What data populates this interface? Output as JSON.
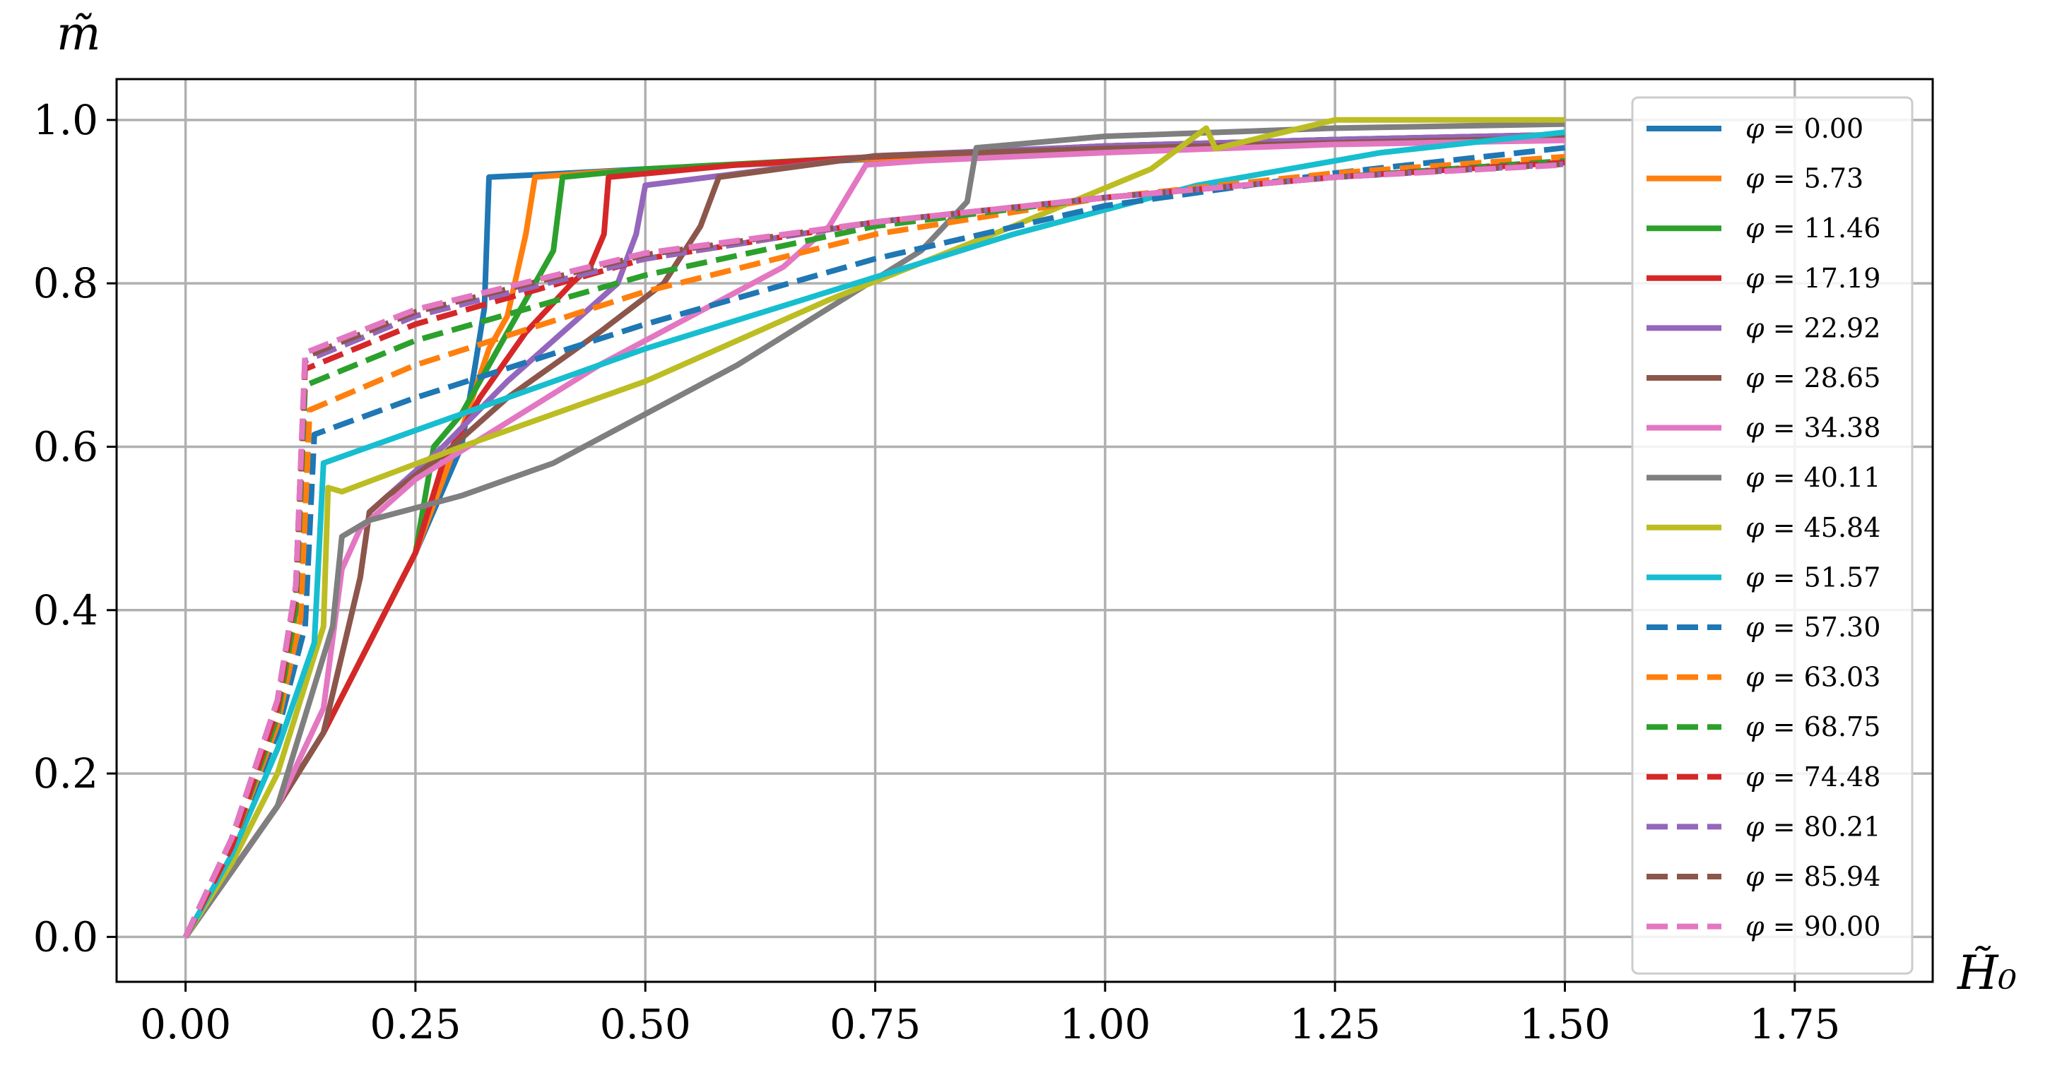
{
  "chart_data": {
    "type": "line",
    "xlabel": "H̃₀",
    "ylabel": "m̃",
    "xlim": [
      -0.075,
      1.9
    ],
    "ylim": [
      -0.055,
      1.05
    ],
    "xticks": [
      "0.00",
      "0.25",
      "0.50",
      "0.75",
      "1.00",
      "1.25",
      "1.50",
      "1.75"
    ],
    "xtick_values": [
      0,
      0.25,
      0.5,
      0.75,
      1.0,
      1.25,
      1.5,
      1.75
    ],
    "yticks": [
      "0.0",
      "0.2",
      "0.4",
      "0.6",
      "0.8",
      "1.0"
    ],
    "ytick_values": [
      0,
      0.2,
      0.4,
      0.6,
      0.8,
      1.0
    ],
    "grid": true,
    "legend_position": "right",
    "legend_symbol": "φ",
    "series": [
      {
        "name": "0.00",
        "color": "#1f77b4",
        "dash": false,
        "points": [
          [
            0,
            0
          ],
          [
            0.05,
            0.08
          ],
          [
            0.1,
            0.16
          ],
          [
            0.15,
            0.25
          ],
          [
            0.2,
            0.36
          ],
          [
            0.25,
            0.47
          ],
          [
            0.3,
            0.6
          ],
          [
            0.315,
            0.7
          ],
          [
            0.325,
            0.77
          ],
          [
            0.33,
            0.93
          ],
          [
            0.4,
            0.934
          ],
          [
            0.5,
            0.94
          ],
          [
            0.75,
            0.952
          ],
          [
            1.0,
            0.965
          ],
          [
            1.25,
            0.972
          ],
          [
            1.5,
            0.978
          ]
        ]
      },
      {
        "name": "5.73",
        "color": "#ff7f0e",
        "dash": false,
        "points": [
          [
            0,
            0
          ],
          [
            0.05,
            0.08
          ],
          [
            0.1,
            0.16
          ],
          [
            0.15,
            0.25
          ],
          [
            0.2,
            0.36
          ],
          [
            0.25,
            0.47
          ],
          [
            0.3,
            0.62
          ],
          [
            0.33,
            0.72
          ],
          [
            0.35,
            0.76
          ],
          [
            0.37,
            0.86
          ],
          [
            0.38,
            0.93
          ],
          [
            0.45,
            0.936
          ],
          [
            0.6,
            0.945
          ],
          [
            0.75,
            0.953
          ],
          [
            1.0,
            0.966
          ],
          [
            1.25,
            0.974
          ],
          [
            1.5,
            0.98
          ]
        ]
      },
      {
        "name": "11.46",
        "color": "#2ca02c",
        "dash": false,
        "points": [
          [
            0,
            0
          ],
          [
            0.05,
            0.08
          ],
          [
            0.1,
            0.16
          ],
          [
            0.15,
            0.25
          ],
          [
            0.2,
            0.36
          ],
          [
            0.25,
            0.47
          ],
          [
            0.27,
            0.6
          ],
          [
            0.3,
            0.64
          ],
          [
            0.34,
            0.72
          ],
          [
            0.37,
            0.78
          ],
          [
            0.4,
            0.84
          ],
          [
            0.41,
            0.93
          ],
          [
            0.5,
            0.94
          ],
          [
            0.75,
            0.955
          ],
          [
            1.0,
            0.968
          ],
          [
            1.25,
            0.976
          ],
          [
            1.5,
            0.982
          ]
        ]
      },
      {
        "name": "17.19",
        "color": "#d62728",
        "dash": false,
        "points": [
          [
            0,
            0
          ],
          [
            0.05,
            0.08
          ],
          [
            0.1,
            0.16
          ],
          [
            0.15,
            0.25
          ],
          [
            0.2,
            0.36
          ],
          [
            0.25,
            0.47
          ],
          [
            0.28,
            0.58
          ],
          [
            0.32,
            0.66
          ],
          [
            0.37,
            0.74
          ],
          [
            0.42,
            0.8
          ],
          [
            0.44,
            0.82
          ],
          [
            0.455,
            0.86
          ],
          [
            0.46,
            0.93
          ],
          [
            0.6,
            0.945
          ],
          [
            0.75,
            0.955
          ],
          [
            1.0,
            0.968
          ],
          [
            1.25,
            0.976
          ],
          [
            1.5,
            0.982
          ]
        ]
      },
      {
        "name": "22.92",
        "color": "#9467bd",
        "dash": false,
        "points": [
          [
            0,
            0
          ],
          [
            0.05,
            0.08
          ],
          [
            0.1,
            0.16
          ],
          [
            0.15,
            0.25
          ],
          [
            0.19,
            0.44
          ],
          [
            0.2,
            0.52
          ],
          [
            0.22,
            0.54
          ],
          [
            0.28,
            0.6
          ],
          [
            0.35,
            0.68
          ],
          [
            0.42,
            0.75
          ],
          [
            0.47,
            0.8
          ],
          [
            0.49,
            0.86
          ],
          [
            0.5,
            0.92
          ],
          [
            0.75,
            0.956
          ],
          [
            1.0,
            0.968
          ],
          [
            1.25,
            0.976
          ],
          [
            1.5,
            0.982
          ]
        ]
      },
      {
        "name": "28.65",
        "color": "#8c564b",
        "dash": false,
        "points": [
          [
            0,
            0
          ],
          [
            0.05,
            0.08
          ],
          [
            0.1,
            0.16
          ],
          [
            0.15,
            0.25
          ],
          [
            0.19,
            0.44
          ],
          [
            0.2,
            0.52
          ],
          [
            0.22,
            0.54
          ],
          [
            0.28,
            0.59
          ],
          [
            0.35,
            0.66
          ],
          [
            0.45,
            0.74
          ],
          [
            0.52,
            0.8
          ],
          [
            0.56,
            0.87
          ],
          [
            0.58,
            0.93
          ],
          [
            0.75,
            0.956
          ],
          [
            1.0,
            0.965
          ],
          [
            1.25,
            0.972
          ],
          [
            1.5,
            0.978
          ]
        ]
      },
      {
        "name": "34.38",
        "color": "#e377c2",
        "dash": false,
        "points": [
          [
            0,
            0
          ],
          [
            0.05,
            0.08
          ],
          [
            0.1,
            0.16
          ],
          [
            0.15,
            0.28
          ],
          [
            0.17,
            0.45
          ],
          [
            0.19,
            0.5
          ],
          [
            0.25,
            0.56
          ],
          [
            0.35,
            0.63
          ],
          [
            0.45,
            0.7
          ],
          [
            0.55,
            0.76
          ],
          [
            0.65,
            0.82
          ],
          [
            0.7,
            0.87
          ],
          [
            0.74,
            0.945
          ],
          [
            0.8,
            0.95
          ],
          [
            1.0,
            0.96
          ],
          [
            1.25,
            0.97
          ],
          [
            1.5,
            0.975
          ]
        ]
      },
      {
        "name": "40.11",
        "color": "#7f7f7f",
        "dash": false,
        "points": [
          [
            0,
            0
          ],
          [
            0.05,
            0.08
          ],
          [
            0.1,
            0.16
          ],
          [
            0.16,
            0.38
          ],
          [
            0.17,
            0.49
          ],
          [
            0.2,
            0.51
          ],
          [
            0.3,
            0.54
          ],
          [
            0.4,
            0.58
          ],
          [
            0.5,
            0.64
          ],
          [
            0.6,
            0.7
          ],
          [
            0.7,
            0.77
          ],
          [
            0.8,
            0.84
          ],
          [
            0.85,
            0.9
          ],
          [
            0.86,
            0.966
          ],
          [
            1.0,
            0.98
          ],
          [
            1.25,
            0.99
          ],
          [
            1.5,
            0.995
          ]
        ]
      },
      {
        "name": "45.84",
        "color": "#bcbd22",
        "dash": false,
        "points": [
          [
            0,
            0
          ],
          [
            0.05,
            0.09
          ],
          [
            0.1,
            0.2
          ],
          [
            0.15,
            0.38
          ],
          [
            0.155,
            0.55
          ],
          [
            0.17,
            0.545
          ],
          [
            0.3,
            0.6
          ],
          [
            0.5,
            0.68
          ],
          [
            0.7,
            0.78
          ],
          [
            0.9,
            0.87
          ],
          [
            1.05,
            0.94
          ],
          [
            1.11,
            0.99
          ],
          [
            1.12,
            0.965
          ],
          [
            1.25,
            1.0
          ],
          [
            1.5,
            1.0
          ]
        ]
      },
      {
        "name": "51.57",
        "color": "#17becf",
        "dash": false,
        "points": [
          [
            0,
            0
          ],
          [
            0.05,
            0.1
          ],
          [
            0.1,
            0.23
          ],
          [
            0.14,
            0.36
          ],
          [
            0.15,
            0.58
          ],
          [
            0.2,
            0.6
          ],
          [
            0.35,
            0.66
          ],
          [
            0.5,
            0.72
          ],
          [
            0.7,
            0.79
          ],
          [
            0.9,
            0.86
          ],
          [
            1.1,
            0.92
          ],
          [
            1.3,
            0.96
          ],
          [
            1.5,
            0.985
          ]
        ]
      },
      {
        "name": "57.30",
        "color": "#1f77b4",
        "dash": true,
        "points": [
          [
            0,
            0
          ],
          [
            0.05,
            0.11
          ],
          [
            0.1,
            0.25
          ],
          [
            0.13,
            0.38
          ],
          [
            0.14,
            0.615
          ],
          [
            0.25,
            0.66
          ],
          [
            0.5,
            0.75
          ],
          [
            0.75,
            0.83
          ],
          [
            1.0,
            0.895
          ],
          [
            1.25,
            0.935
          ],
          [
            1.5,
            0.966
          ]
        ]
      },
      {
        "name": "63.03",
        "color": "#ff7f0e",
        "dash": true,
        "points": [
          [
            0,
            0
          ],
          [
            0.05,
            0.11
          ],
          [
            0.1,
            0.26
          ],
          [
            0.125,
            0.39
          ],
          [
            0.135,
            0.645
          ],
          [
            0.25,
            0.7
          ],
          [
            0.5,
            0.79
          ],
          [
            0.75,
            0.86
          ],
          [
            1.0,
            0.905
          ],
          [
            1.25,
            0.935
          ],
          [
            1.5,
            0.955
          ]
        ]
      },
      {
        "name": "68.75",
        "color": "#2ca02c",
        "dash": true,
        "points": [
          [
            0,
            0
          ],
          [
            0.05,
            0.11
          ],
          [
            0.1,
            0.27
          ],
          [
            0.12,
            0.4
          ],
          [
            0.13,
            0.675
          ],
          [
            0.25,
            0.73
          ],
          [
            0.5,
            0.81
          ],
          [
            0.75,
            0.87
          ],
          [
            1.0,
            0.905
          ],
          [
            1.25,
            0.93
          ],
          [
            1.5,
            0.95
          ]
        ]
      },
      {
        "name": "74.48",
        "color": "#d62728",
        "dash": true,
        "points": [
          [
            0,
            0
          ],
          [
            0.05,
            0.11
          ],
          [
            0.1,
            0.28
          ],
          [
            0.12,
            0.42
          ],
          [
            0.13,
            0.695
          ],
          [
            0.25,
            0.75
          ],
          [
            0.5,
            0.83
          ],
          [
            0.75,
            0.875
          ],
          [
            1.0,
            0.905
          ],
          [
            1.25,
            0.93
          ],
          [
            1.5,
            0.948
          ]
        ]
      },
      {
        "name": "80.21",
        "color": "#9467bd",
        "dash": true,
        "points": [
          [
            0,
            0
          ],
          [
            0.05,
            0.12
          ],
          [
            0.1,
            0.29
          ],
          [
            0.12,
            0.43
          ],
          [
            0.13,
            0.705
          ],
          [
            0.25,
            0.76
          ],
          [
            0.5,
            0.83
          ],
          [
            0.75,
            0.875
          ],
          [
            1.0,
            0.905
          ],
          [
            1.25,
            0.93
          ],
          [
            1.5,
            0.946
          ]
        ]
      },
      {
        "name": "85.94",
        "color": "#8c564b",
        "dash": true,
        "points": [
          [
            0,
            0
          ],
          [
            0.05,
            0.12
          ],
          [
            0.1,
            0.29
          ],
          [
            0.12,
            0.43
          ],
          [
            0.13,
            0.71
          ],
          [
            0.25,
            0.765
          ],
          [
            0.5,
            0.835
          ],
          [
            0.75,
            0.875
          ],
          [
            1.0,
            0.905
          ],
          [
            1.25,
            0.93
          ],
          [
            1.5,
            0.946
          ]
        ]
      },
      {
        "name": "90.00",
        "color": "#e377c2",
        "dash": true,
        "points": [
          [
            0,
            0
          ],
          [
            0.05,
            0.12
          ],
          [
            0.1,
            0.29
          ],
          [
            0.12,
            0.43
          ],
          [
            0.13,
            0.715
          ],
          [
            0.25,
            0.768
          ],
          [
            0.5,
            0.837
          ],
          [
            0.75,
            0.875
          ],
          [
            1.0,
            0.905
          ],
          [
            1.25,
            0.93
          ],
          [
            1.5,
            0.945
          ]
        ]
      }
    ]
  }
}
